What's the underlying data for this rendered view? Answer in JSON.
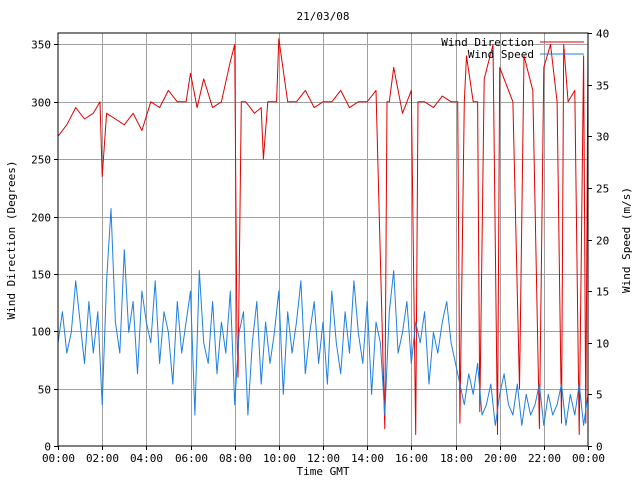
{
  "chart_data": {
    "type": "line",
    "title": "21/03/08",
    "xlabel": "Time GMT",
    "ylabel_left": "Wind Direction (Degrees)",
    "ylabel_right": "Wind Speed (m/s)",
    "x_range_hours": [
      0,
      24
    ],
    "x_ticks": [
      "00:00",
      "02:00",
      "04:00",
      "06:00",
      "08:00",
      "10:00",
      "12:00",
      "14:00",
      "16:00",
      "18:00",
      "20:00",
      "22:00",
      "00:00"
    ],
    "y_left": {
      "lim": [
        0,
        360
      ],
      "ticks": [
        "0",
        "50",
        "100",
        "150",
        "200",
        "250",
        "300",
        "350"
      ],
      "tick_values": [
        0,
        50,
        100,
        150,
        200,
        250,
        300,
        350
      ]
    },
    "y_right": {
      "lim": [
        0,
        40
      ],
      "ticks": [
        "0",
        "5",
        "10",
        "15",
        "20",
        "25",
        "30",
        "35",
        "40"
      ],
      "tick_values": [
        0,
        5,
        10,
        15,
        20,
        25,
        30,
        35,
        40
      ]
    },
    "grid": true,
    "legend_position": "top-right",
    "series": [
      {
        "name": "Wind Direction",
        "color": "#e00000",
        "axis": "left",
        "x": [
          0,
          0.4,
          0.8,
          1.2,
          1.6,
          1.9,
          2.0,
          2.2,
          2.6,
          3.0,
          3.4,
          3.8,
          4.2,
          4.6,
          5.0,
          5.4,
          5.8,
          6.0,
          6.3,
          6.6,
          7.0,
          7.4,
          7.8,
          8.0,
          8.1,
          8.15,
          8.3,
          8.5,
          8.9,
          9.2,
          9.3,
          9.5,
          9.9,
          10.0,
          10.4,
          10.8,
          11.2,
          11.6,
          12.0,
          12.4,
          12.8,
          13.2,
          13.6,
          14.0,
          14.4,
          14.8,
          14.9,
          15.0,
          15.2,
          15.6,
          16.0,
          16.2,
          16.3,
          16.6,
          17.0,
          17.4,
          17.8,
          18.1,
          18.2,
          18.4,
          18.5,
          18.8,
          19.0,
          19.1,
          19.3,
          19.7,
          19.9,
          20.0,
          20.2,
          20.6,
          20.9,
          21.1,
          21.5,
          21.8,
          22.0,
          22.3,
          22.6,
          22.8,
          22.9,
          23.1,
          23.4,
          23.6,
          23.8,
          23.9,
          24.0
        ],
        "values": [
          270,
          280,
          295,
          285,
          290,
          300,
          235,
          290,
          285,
          280,
          290,
          275,
          300,
          295,
          310,
          300,
          300,
          325,
          295,
          320,
          295,
          300,
          335,
          350,
          100,
          60,
          300,
          300,
          290,
          295,
          250,
          300,
          300,
          355,
          300,
          300,
          310,
          295,
          300,
          300,
          310,
          295,
          300,
          300,
          310,
          15,
          300,
          300,
          330,
          290,
          310,
          10,
          300,
          300,
          295,
          305,
          300,
          300,
          20,
          300,
          340,
          300,
          300,
          30,
          320,
          350,
          10,
          330,
          320,
          300,
          50,
          340,
          310,
          15,
          330,
          350,
          300,
          20,
          350,
          300,
          310,
          10,
          340,
          20,
          350
        ]
      },
      {
        "name": "Wind Speed",
        "color": "#1f7fe0",
        "axis": "right",
        "x": [
          0,
          0.2,
          0.4,
          0.6,
          0.8,
          1.0,
          1.2,
          1.4,
          1.6,
          1.8,
          2.0,
          2.2,
          2.4,
          2.6,
          2.8,
          3.0,
          3.2,
          3.4,
          3.6,
          3.8,
          4.0,
          4.2,
          4.4,
          4.6,
          4.8,
          5.0,
          5.2,
          5.4,
          5.6,
          5.8,
          6.0,
          6.2,
          6.4,
          6.6,
          6.8,
          7.0,
          7.2,
          7.4,
          7.6,
          7.8,
          8.0,
          8.2,
          8.4,
          8.6,
          8.8,
          9.0,
          9.2,
          9.4,
          9.6,
          9.8,
          10.0,
          10.2,
          10.4,
          10.6,
          10.8,
          11.0,
          11.2,
          11.4,
          11.6,
          11.8,
          12.0,
          12.2,
          12.4,
          12.6,
          12.8,
          13.0,
          13.2,
          13.4,
          13.6,
          13.8,
          14.0,
          14.2,
          14.4,
          14.6,
          14.8,
          15.0,
          15.2,
          15.4,
          15.6,
          15.8,
          16.0,
          16.2,
          16.4,
          16.6,
          16.8,
          17.0,
          17.2,
          17.4,
          17.6,
          17.8,
          18.0,
          18.2,
          18.4,
          18.6,
          18.8,
          19.0,
          19.2,
          19.4,
          19.6,
          19.8,
          20.0,
          20.2,
          20.4,
          20.6,
          20.8,
          21.0,
          21.2,
          21.4,
          21.6,
          21.8,
          22.0,
          22.2,
          22.4,
          22.6,
          22.8,
          23.0,
          23.2,
          23.4,
          23.6,
          23.8,
          24.0
        ],
        "values": [
          10,
          13,
          9,
          11,
          16,
          12,
          8,
          14,
          9,
          13,
          4,
          16,
          23,
          12,
          9,
          19,
          11,
          14,
          7,
          15,
          12,
          10,
          16,
          8,
          13,
          11,
          6,
          14,
          9,
          12,
          15,
          3,
          17,
          10,
          8,
          14,
          7,
          12,
          9,
          15,
          4,
          11,
          13,
          3,
          10,
          14,
          6,
          12,
          8,
          11,
          15,
          5,
          13,
          9,
          12,
          16,
          7,
          11,
          14,
          8,
          12,
          6,
          15,
          10,
          7,
          13,
          9,
          16,
          11,
          8,
          14,
          5,
          12,
          10,
          3,
          13,
          17,
          9,
          11,
          14,
          8,
          12,
          10,
          13,
          6,
          11,
          9,
          12,
          14,
          10,
          8,
          6,
          4,
          7,
          5,
          8,
          3,
          4,
          6,
          2,
          5,
          7,
          4,
          3,
          6,
          2,
          5,
          3,
          4,
          6,
          2,
          5,
          3,
          4,
          6,
          2,
          5,
          3,
          6,
          2,
          5
        ]
      }
    ]
  }
}
